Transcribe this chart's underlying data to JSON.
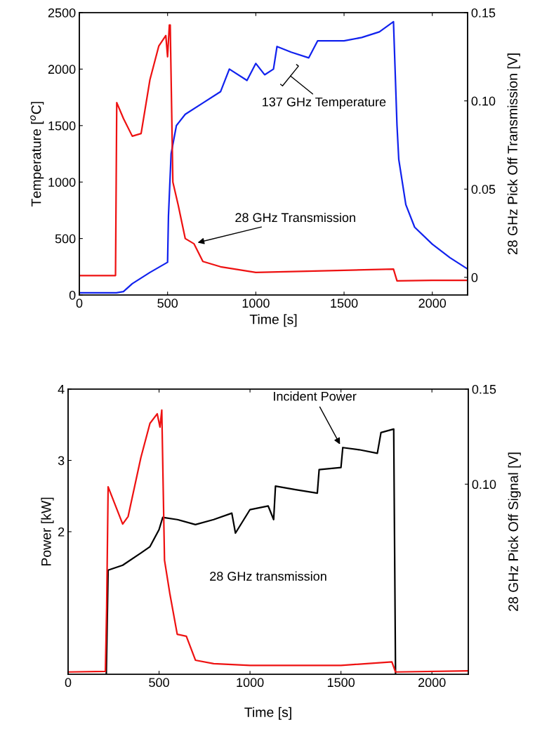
{
  "chart_data": [
    {
      "type": "line",
      "xlabel": "Time [s]",
      "ylabel": "Temperature [$^{o}$C]",
      "y2label": "28 GHz Pick Off Transmission [V]",
      "xlim": [
        0,
        2200
      ],
      "xticks": [
        0,
        500,
        1000,
        1500,
        2000
      ],
      "ylim": [
        0,
        2500
      ],
      "yticks": [
        0,
        500,
        1000,
        1500,
        2000,
        2500
      ],
      "y2lim": [
        -0.01,
        0.15
      ],
      "y2ticks": [
        0,
        0.05,
        {
          "value": 0.1,
          "label": "0.10"
        },
        0.15
      ],
      "grid": false,
      "legend": false,
      "series": [
        {
          "color": "#ee1111",
          "axis": "y2",
          "x": [
            0,
            205,
            212,
            250,
            300,
            350,
            400,
            450,
            490,
            500,
            510,
            515,
            530,
            560,
            600,
            650,
            700,
            800,
            1000,
            1500,
            1780,
            1800,
            2000,
            2200
          ],
          "values": [
            0.001,
            0.001,
            0.099,
            0.09,
            0.08,
            0.0815,
            0.112,
            0.131,
            0.137,
            0.125,
            0.143,
            0.143,
            0.054,
            0.041,
            0.022,
            0.019,
            0.009,
            0.006,
            0.0028,
            0.004,
            0.0047,
            -0.002,
            -0.0017,
            -0.0017
          ]
        },
        {
          "color": "#1122ee",
          "x": [
            0,
            210,
            250,
            300,
            400,
            500,
            505,
            520,
            550,
            600,
            700,
            800,
            850,
            950,
            1000,
            1050,
            1100,
            1120,
            1200,
            1300,
            1350,
            1500,
            1600,
            1700,
            1780,
            1800,
            1810,
            1850,
            1900,
            2000,
            2100,
            2200
          ],
          "values": [
            20,
            20,
            30,
            100,
            200,
            290,
            700,
            1250,
            1500,
            1600,
            1700,
            1800,
            2000,
            1900,
            2050,
            1950,
            2000,
            2200,
            2150,
            2100,
            2250,
            2250,
            2280,
            2330,
            2420,
            1500,
            1200,
            800,
            600,
            450,
            330,
            230
          ]
        }
      ],
      "annotations": [
        "137 GHz Temperature",
        {
          "text": "28 GHz Transmission",
          "x": 660,
          "y": 460
        }
      ]
    },
    {
      "type": "line",
      "xlabel": "Time [s]",
      "ylabel": "Power [kW]",
      "y2label": "28 GHz Pick Off Signal [V]",
      "xlim": [
        0,
        2200
      ],
      "xticks": [
        0,
        500,
        1000,
        1500,
        2000
      ],
      "ylim": [
        0,
        4
      ],
      "yticks": [
        2,
        3,
        4
      ],
      "y2lim": [
        0,
        0.15
      ],
      "y2ticks": [
        {
          "value": 0.1,
          "label": "0.10"
        },
        0.15
      ],
      "grid": false,
      "legend": false,
      "series": [
        {
          "color": "#ee1111",
          "axis": "y2",
          "x": [
            0,
            205,
            212,
            220,
            300,
            330,
            400,
            450,
            490,
            505,
            515,
            530,
            560,
            600,
            650,
            700,
            800,
            1000,
            1500,
            1780,
            1800,
            2200
          ],
          "values": [
            0.0012,
            0.0015,
            0.0354,
            0.0986,
            0.079,
            0.083,
            0.114,
            0.132,
            0.137,
            0.13,
            0.139,
            0.06,
            0.042,
            0.021,
            0.02,
            0.0074,
            0.0056,
            0.0047,
            0.0047,
            0.0065,
            0.0012,
            0.0018
          ]
        },
        {
          "color": "#000000",
          "x": [
            210,
            220,
            300,
            400,
            450,
            500,
            520,
            600,
            700,
            800,
            900,
            920,
            1000,
            1100,
            1130,
            1140,
            1250,
            1370,
            1380,
            1500,
            1510,
            1600,
            1700,
            1720,
            1790,
            1800
          ],
          "values": [
            0,
            1.46,
            1.53,
            1.7,
            1.79,
            2.03,
            2.2,
            2.17,
            2.1,
            2.17,
            2.26,
            1.98,
            2.31,
            2.36,
            2.17,
            2.64,
            2.59,
            2.54,
            2.87,
            2.9,
            3.18,
            3.15,
            3.1,
            3.39,
            3.44,
            0
          ]
        }
      ],
      "annotations": [
        {
          "text": "Incident Power",
          "x": 1500,
          "y": 3.2
        },
        "28 GHz transmission"
      ]
    }
  ]
}
